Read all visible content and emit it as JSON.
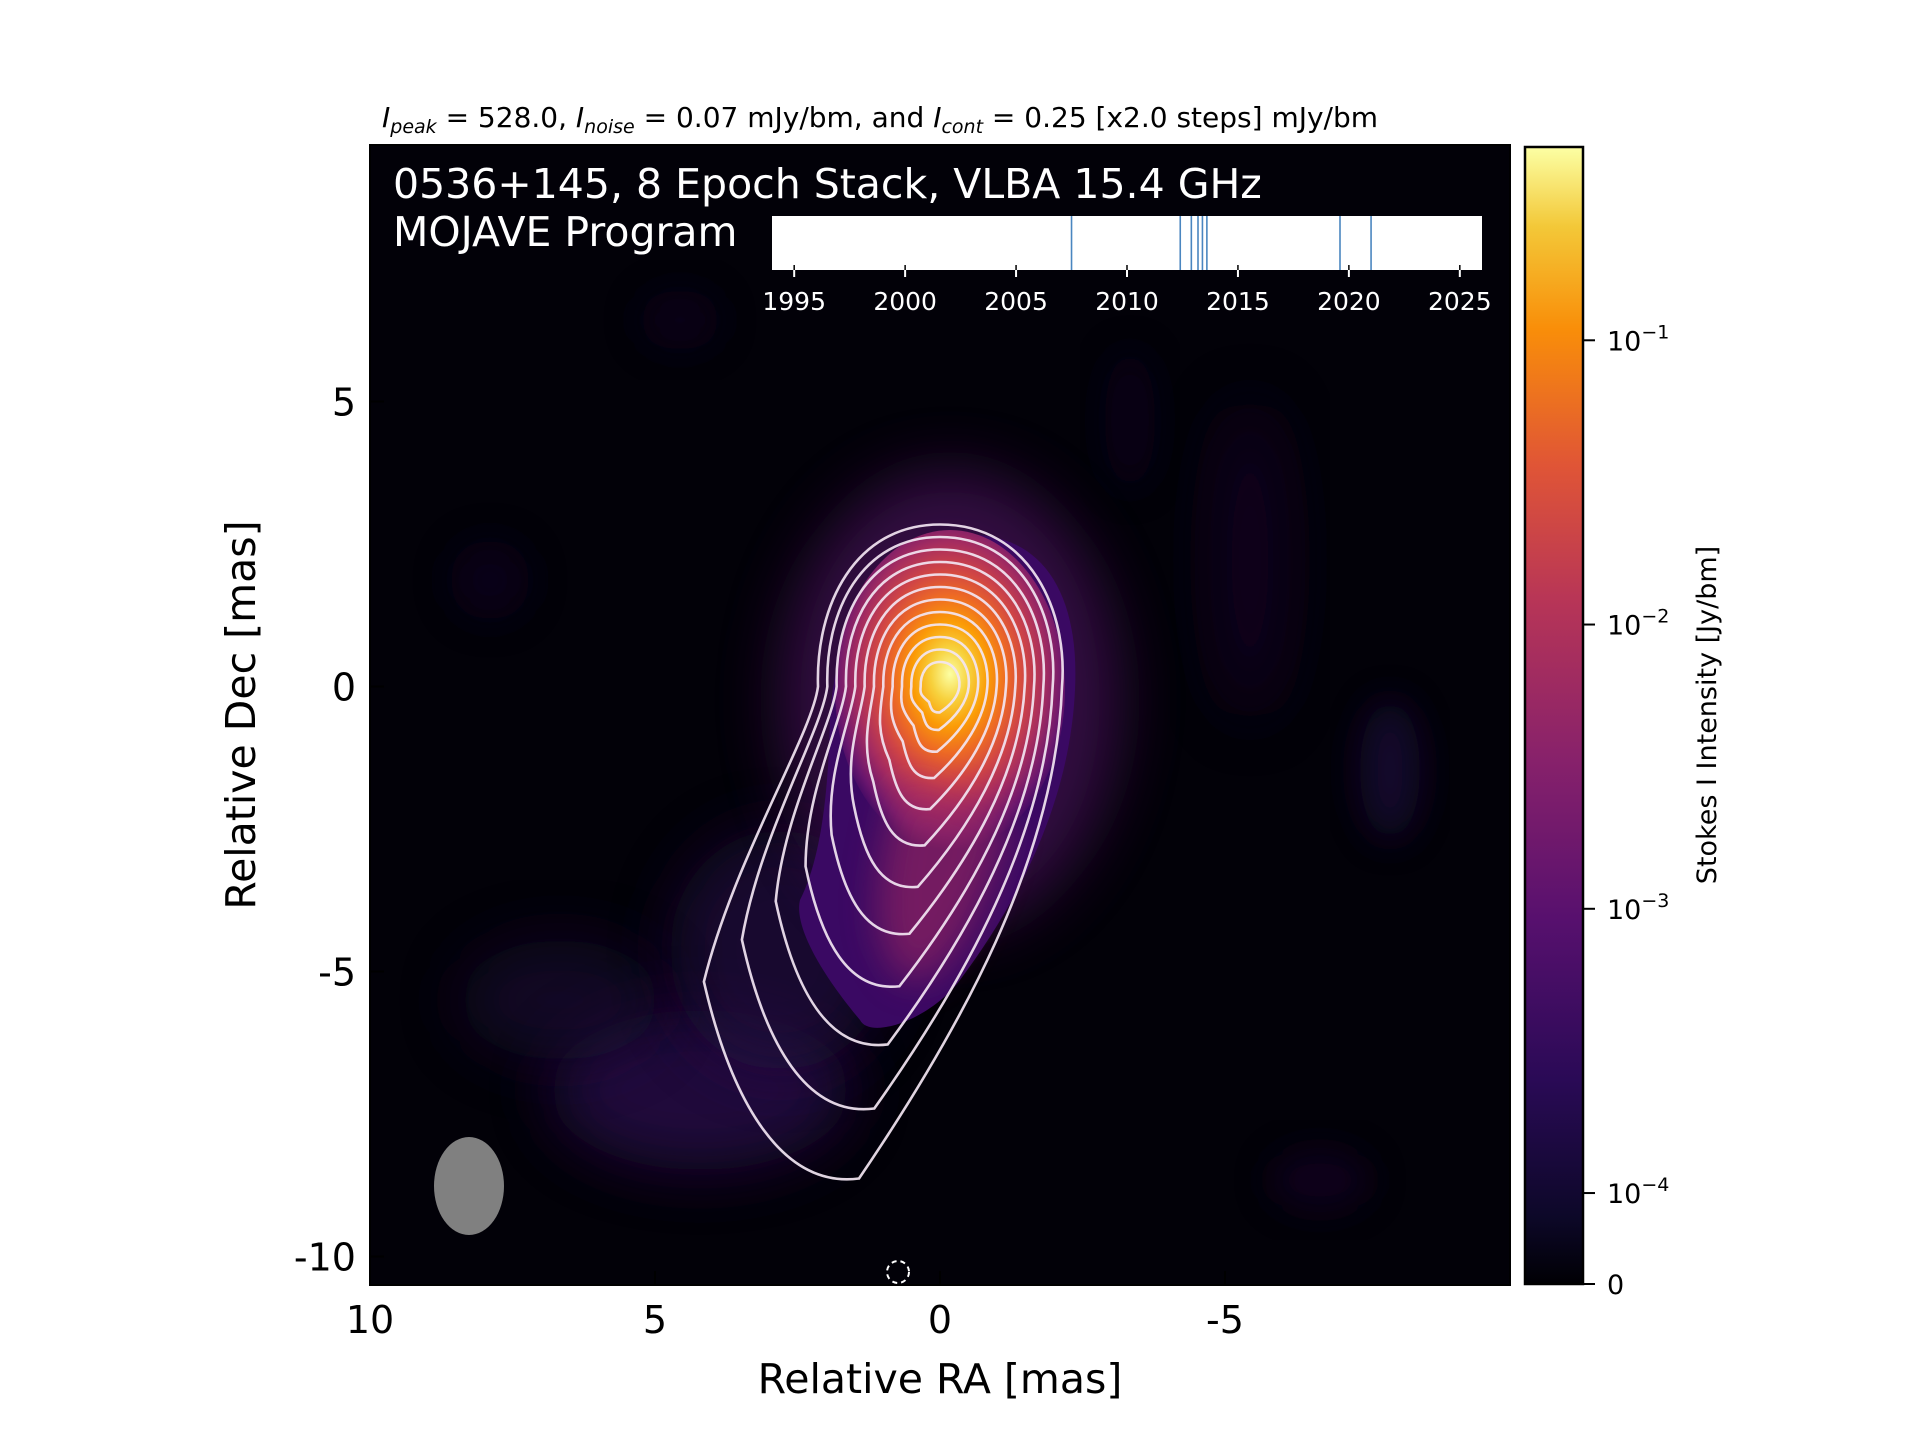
{
  "chart_data": {
    "type": "heatmap",
    "header": {
      "peak_sym": "I",
      "peak_sub": "peak",
      "peak_val": " = 528.0, ",
      "noise_sym": "I",
      "noise_sub": "noise",
      "noise_val": " = 0.07 mJy/bm, and ",
      "cont_sym": "I",
      "cont_sub": "cont",
      "cont_val": " = 0.25 [x2.0 steps] mJy/bm"
    },
    "title_line1": "0536+145, 8 Epoch Stack, VLBA 15.4 GHz",
    "title_line2": "MOJAVE Program",
    "xlabel": "Relative RA [mas]",
    "ylabel": "Relative Dec [mas]",
    "xlim": [
      10,
      -10
    ],
    "ylim": [
      -10.5,
      9.5
    ],
    "x_ticks": [
      "10",
      "5",
      "0",
      "-5"
    ],
    "x_tick_values": [
      10,
      5,
      0,
      -5
    ],
    "y_ticks": [
      "5",
      "0",
      "-5",
      "-10"
    ],
    "y_tick_values": [
      5,
      0,
      -5,
      -10
    ],
    "source": {
      "center": [
        0,
        0
      ],
      "contour_levels": 12,
      "jet_direction": "south-east"
    },
    "beam": {
      "x": 8.4,
      "y": -8.6,
      "major_mas": 1.7,
      "minor_mas": 1.2
    },
    "colorbar": {
      "label": "Stokes I Intensity [Jy/bm]",
      "ticks": [
        "10",
        "10",
        "10",
        "10",
        "0"
      ],
      "tick_exponents": [
        "−1",
        "−2",
        "−3",
        "−4",
        ""
      ],
      "tick_values": [
        0.1,
        0.01,
        0.001,
        0.0001,
        0
      ],
      "colormap": "inferno",
      "colors": [
        "#000004",
        "#1b0c41",
        "#4a0c6b",
        "#781c6d",
        "#a52c60",
        "#cf4446",
        "#ed6925",
        "#fb9b06",
        "#f7d13d",
        "#fcffa4"
      ]
    },
    "epochs": {
      "years": [
        2007.5,
        2012.4,
        2012.9,
        2013.2,
        2013.4,
        2013.6,
        2019.6,
        2021.0
      ],
      "xlim": [
        1994,
        2026
      ],
      "tick_labels": [
        "1995",
        "2000",
        "2005",
        "2010",
        "2015",
        "2020",
        "2025"
      ],
      "tick_values": [
        1995,
        2000,
        2005,
        2010,
        2015,
        2020,
        2025
      ],
      "line_color": "#4a86c0"
    }
  }
}
